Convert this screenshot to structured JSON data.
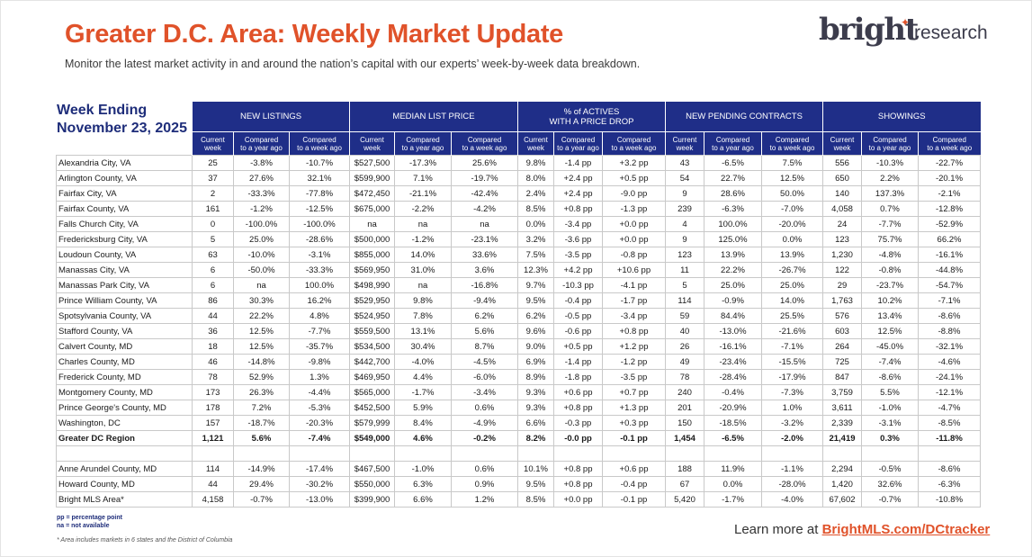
{
  "header": {
    "title": "Greater D.C. Area: Weekly Market Update",
    "subtitle": "Monitor the latest market activity in and around the nation’s capital with our experts’ week-by-week data breakdown."
  },
  "logo": {
    "brand": "bright",
    "suffix": "research"
  },
  "week_ending": {
    "line1": "Week Ending",
    "line2": "November 23, 2025"
  },
  "groups": [
    "NEW LISTINGS",
    "MEDIAN LIST PRICE",
    "% of ACTIVES\nWITH A PRICE DROP",
    "NEW PENDING CONTRACTS",
    "SHOWINGS"
  ],
  "subheaders": [
    "Current\nweek",
    "Compared\nto a year ago",
    "Compared\nto a week ago"
  ],
  "rows": [
    {
      "name": "Alexandria City, VA",
      "values": [
        "25",
        "-3.8%",
        "-10.7%",
        "$527,500",
        "-17.3%",
        "25.6%",
        "9.8%",
        "-1.4 pp",
        "+3.2 pp",
        "43",
        "-6.5%",
        "7.5%",
        "556",
        "-10.3%",
        "-22.7%"
      ]
    },
    {
      "name": "Arlington County, VA",
      "values": [
        "37",
        "27.6%",
        "32.1%",
        "$599,900",
        "7.1%",
        "-19.7%",
        "8.0%",
        "+2.4 pp",
        "+0.5 pp",
        "54",
        "22.7%",
        "12.5%",
        "650",
        "2.2%",
        "-20.1%"
      ]
    },
    {
      "name": "Fairfax City, VA",
      "values": [
        "2",
        "-33.3%",
        "-77.8%",
        "$472,450",
        "-21.1%",
        "-42.4%",
        "2.4%",
        "+2.4 pp",
        "-9.0 pp",
        "9",
        "28.6%",
        "50.0%",
        "140",
        "137.3%",
        "-2.1%"
      ]
    },
    {
      "name": "Fairfax County, VA",
      "values": [
        "161",
        "-1.2%",
        "-12.5%",
        "$675,000",
        "-2.2%",
        "-4.2%",
        "8.5%",
        "+0.8 pp",
        "-1.3 pp",
        "239",
        "-6.3%",
        "-7.0%",
        "4,058",
        "0.7%",
        "-12.8%"
      ]
    },
    {
      "name": "Falls Church City, VA",
      "values": [
        "0",
        "-100.0%",
        "-100.0%",
        "na",
        "na",
        "na",
        "0.0%",
        "-3.4 pp",
        "+0.0 pp",
        "4",
        "100.0%",
        "-20.0%",
        "24",
        "-7.7%",
        "-52.9%"
      ]
    },
    {
      "name": "Fredericksburg City, VA",
      "values": [
        "5",
        "25.0%",
        "-28.6%",
        "$500,000",
        "-1.2%",
        "-23.1%",
        "3.2%",
        "-3.6 pp",
        "+0.0 pp",
        "9",
        "125.0%",
        "0.0%",
        "123",
        "75.7%",
        "66.2%"
      ]
    },
    {
      "name": "Loudoun County, VA",
      "values": [
        "63",
        "-10.0%",
        "-3.1%",
        "$855,000",
        "14.0%",
        "33.6%",
        "7.5%",
        "-3.5 pp",
        "-0.8 pp",
        "123",
        "13.9%",
        "13.9%",
        "1,230",
        "-4.8%",
        "-16.1%"
      ]
    },
    {
      "name": "Manassas City, VA",
      "values": [
        "6",
        "-50.0%",
        "-33.3%",
        "$569,950",
        "31.0%",
        "3.6%",
        "12.3%",
        "+4.2 pp",
        "+10.6 pp",
        "11",
        "22.2%",
        "-26.7%",
        "122",
        "-0.8%",
        "-44.8%"
      ]
    },
    {
      "name": "Manassas Park City, VA",
      "values": [
        "6",
        "na",
        "100.0%",
        "$498,990",
        "na",
        "-16.8%",
        "9.7%",
        "-10.3 pp",
        "-4.1 pp",
        "5",
        "25.0%",
        "25.0%",
        "29",
        "-23.7%",
        "-54.7%"
      ]
    },
    {
      "name": "Prince William County, VA",
      "values": [
        "86",
        "30.3%",
        "16.2%",
        "$529,950",
        "9.8%",
        "-9.4%",
        "9.5%",
        "-0.4 pp",
        "-1.7 pp",
        "114",
        "-0.9%",
        "14.0%",
        "1,763",
        "10.2%",
        "-7.1%"
      ]
    },
    {
      "name": "Spotsylvania County, VA",
      "values": [
        "44",
        "22.2%",
        "4.8%",
        "$524,950",
        "7.8%",
        "6.2%",
        "6.2%",
        "-0.5 pp",
        "-3.4 pp",
        "59",
        "84.4%",
        "25.5%",
        "576",
        "13.4%",
        "-8.6%"
      ]
    },
    {
      "name": "Stafford County, VA",
      "values": [
        "36",
        "12.5%",
        "-7.7%",
        "$559,500",
        "13.1%",
        "5.6%",
        "9.6%",
        "-0.6 pp",
        "+0.8 pp",
        "40",
        "-13.0%",
        "-21.6%",
        "603",
        "12.5%",
        "-8.8%"
      ]
    },
    {
      "name": "Calvert County, MD",
      "values": [
        "18",
        "12.5%",
        "-35.7%",
        "$534,500",
        "30.4%",
        "8.7%",
        "9.0%",
        "+0.5 pp",
        "+1.2 pp",
        "26",
        "-16.1%",
        "-7.1%",
        "264",
        "-45.0%",
        "-32.1%"
      ]
    },
    {
      "name": "Charles County, MD",
      "values": [
        "46",
        "-14.8%",
        "-9.8%",
        "$442,700",
        "-4.0%",
        "-4.5%",
        "6.9%",
        "-1.4 pp",
        "-1.2 pp",
        "49",
        "-23.4%",
        "-15.5%",
        "725",
        "-7.4%",
        "-4.6%"
      ]
    },
    {
      "name": "Frederick County, MD",
      "values": [
        "78",
        "52.9%",
        "1.3%",
        "$469,950",
        "4.4%",
        "-6.0%",
        "8.9%",
        "-1.8 pp",
        "-3.5 pp",
        "78",
        "-28.4%",
        "-17.9%",
        "847",
        "-8.6%",
        "-24.1%"
      ]
    },
    {
      "name": "Montgomery County, MD",
      "values": [
        "173",
        "26.3%",
        "-4.4%",
        "$565,000",
        "-1.7%",
        "-3.4%",
        "9.3%",
        "+0.6 pp",
        "+0.7 pp",
        "240",
        "-0.4%",
        "-7.3%",
        "3,759",
        "5.5%",
        "-12.1%"
      ]
    },
    {
      "name": "Prince George's County, MD",
      "values": [
        "178",
        "7.2%",
        "-5.3%",
        "$452,500",
        "5.9%",
        "0.6%",
        "9.3%",
        "+0.8 pp",
        "+1.3 pp",
        "201",
        "-20.9%",
        "1.0%",
        "3,611",
        "-1.0%",
        "-4.7%"
      ]
    },
    {
      "name": "Washington, DC",
      "values": [
        "157",
        "-18.7%",
        "-20.3%",
        "$579,999",
        "8.4%",
        "-4.9%",
        "6.6%",
        "-0.3 pp",
        "+0.3 pp",
        "150",
        "-18.5%",
        "-3.2%",
        "2,339",
        "-3.1%",
        "-8.5%"
      ]
    },
    {
      "name": "Greater DC Region",
      "values": [
        "1,121",
        "5.6%",
        "-7.4%",
        "$549,000",
        "4.6%",
        "-0.2%",
        "8.2%",
        "-0.0 pp",
        "-0.1 pp",
        "1,454",
        "-6.5%",
        "-2.0%",
        "21,419",
        "0.3%",
        "-11.8%"
      ]
    }
  ],
  "extra_rows": [
    {
      "name": "Anne Arundel County, MD",
      "values": [
        "114",
        "-14.9%",
        "-17.4%",
        "$467,500",
        "-1.0%",
        "0.6%",
        "10.1%",
        "+0.8 pp",
        "+0.6 pp",
        "188",
        "11.9%",
        "-1.1%",
        "2,294",
        "-0.5%",
        "-8.6%"
      ]
    },
    {
      "name": "Howard County, MD",
      "values": [
        "44",
        "29.4%",
        "-30.2%",
        "$550,000",
        "6.3%",
        "0.9%",
        "9.5%",
        "+0.8 pp",
        "-0.4 pp",
        "67",
        "0.0%",
        "-28.0%",
        "1,420",
        "32.6%",
        "-6.3%"
      ]
    },
    {
      "name": "Bright MLS Area*",
      "values": [
        "4,158",
        "-0.7%",
        "-13.0%",
        "$399,900",
        "6.6%",
        "1.2%",
        "8.5%",
        "+0.0 pp",
        "-0.1 pp",
        "5,420",
        "-1.7%",
        "-4.0%",
        "67,602",
        "-0.7%",
        "-10.8%"
      ]
    }
  ],
  "legend": {
    "pp": "pp = percentage point",
    "na": "na = not available"
  },
  "footnote": "* Area includes markets in 6 states and the District of Columbia",
  "footer": {
    "learn_more": "Learn more at ",
    "link": "BrightMLS.com/DCtracker"
  },
  "colors": {
    "accent": "#e0522a",
    "navy": "#1f2e88"
  }
}
